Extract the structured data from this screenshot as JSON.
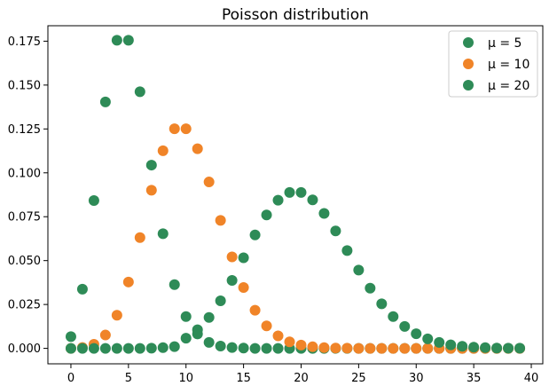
{
  "chart_data": {
    "type": "scatter",
    "title": "Poisson distribution",
    "xlabel": "",
    "ylabel": "",
    "xlim": [
      -2.0,
      41.0
    ],
    "ylim": [
      -0.0088,
      0.1838
    ],
    "xticks": [
      0,
      5,
      10,
      15,
      20,
      25,
      30,
      35,
      40
    ],
    "yticks": [
      0.0,
      0.025,
      0.05,
      0.075,
      0.1,
      0.125,
      0.15,
      0.175
    ],
    "ytick_labels": [
      "0.000",
      "0.025",
      "0.050",
      "0.075",
      "0.100",
      "0.125",
      "0.150",
      "0.175"
    ],
    "grid": false,
    "legend_position": "top-right",
    "x": [
      0,
      1,
      2,
      3,
      4,
      5,
      6,
      7,
      8,
      9,
      10,
      11,
      12,
      13,
      14,
      15,
      16,
      17,
      18,
      19,
      20,
      21,
      22,
      23,
      24,
      25,
      26,
      27,
      28,
      29,
      30,
      31,
      32,
      33,
      34,
      35,
      36,
      37,
      38,
      39
    ],
    "series": [
      {
        "name": "μ = 5",
        "color": "#2e8b57",
        "values": [
          0.0067,
          0.0337,
          0.0842,
          0.1404,
          0.1755,
          0.1755,
          0.1462,
          0.1044,
          0.0653,
          0.0363,
          0.0181,
          0.0082,
          0.0034,
          0.0013,
          0.0005,
          0.0002,
          0.0,
          0.0,
          0.0,
          0.0,
          0.0,
          0.0,
          0.0,
          0.0,
          0.0,
          0.0,
          0.0,
          0.0,
          0.0,
          0.0,
          0.0,
          0.0,
          0.0,
          0.0,
          0.0,
          0.0,
          0.0,
          0.0,
          0.0,
          0.0
        ]
      },
      {
        "name": "μ = 10",
        "color": "#f08428",
        "values": [
          0.0,
          0.0005,
          0.0023,
          0.0076,
          0.0189,
          0.0378,
          0.0631,
          0.0901,
          0.1126,
          0.1251,
          0.1251,
          0.1137,
          0.0948,
          0.0729,
          0.0521,
          0.0347,
          0.0217,
          0.0128,
          0.0071,
          0.0037,
          0.0019,
          0.0009,
          0.0004,
          0.0002,
          0.0001,
          0.0,
          0.0,
          0.0,
          0.0,
          0.0,
          0.0,
          0.0,
          0.0,
          0.0,
          0.0,
          0.0,
          0.0,
          0.0,
          0.0,
          0.0
        ]
      },
      {
        "name": "μ = 20",
        "color": "#2e8b57",
        "values": [
          0.0,
          0.0,
          0.0,
          0.0,
          0.0,
          0.0,
          0.0,
          0.0001,
          0.0004,
          0.001,
          0.0058,
          0.0106,
          0.0176,
          0.0271,
          0.0387,
          0.0516,
          0.0646,
          0.076,
          0.0844,
          0.0888,
          0.0888,
          0.0846,
          0.0769,
          0.0669,
          0.0557,
          0.0446,
          0.0343,
          0.0254,
          0.0181,
          0.0125,
          0.0083,
          0.0054,
          0.0034,
          0.002,
          0.0012,
          0.0007,
          0.0004,
          0.0002,
          0.0001,
          0.0001
        ]
      }
    ]
  }
}
